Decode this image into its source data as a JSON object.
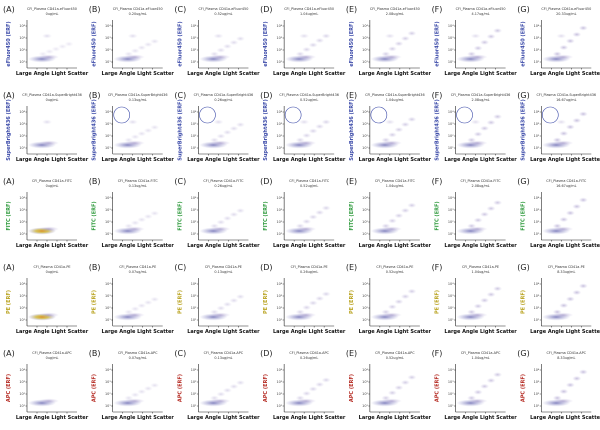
{
  "chart_data": {
    "type": "scatter",
    "xlabel": "Large Angle Light Scatter",
    "ytick_labels": [
      "10¹",
      "10²",
      "10³",
      "10⁴"
    ],
    "rows": [
      {
        "ylabel": "eFluor450 (ERF)",
        "color": "#3a49a8",
        "ring": false,
        "panels": [
          {
            "letter": "(A)",
            "title": "CFl_Plasma CD41a-eFluor450",
            "conc": "0ug/mL"
          },
          {
            "letter": "(B)",
            "title": "CFl_Plasma CD41a-eFluor450",
            "conc": "0.20ug/mL"
          },
          {
            "letter": "(C)",
            "title": "CFl_Plasma CD41a-eFluor450",
            "conc": "0.52ug/mL"
          },
          {
            "letter": "(D)",
            "title": "CFl_Plasma CD41a-eFluor450",
            "conc": "1.04ug/mL"
          },
          {
            "letter": "(E)",
            "title": "CFl_Plasma CD41a-eFluor450",
            "conc": "2.08ug/mL"
          },
          {
            "letter": "(F)",
            "title": "CFl_Plasma CD41a-eFluor450",
            "conc": "4.17ug/mL"
          },
          {
            "letter": "(G)",
            "title": "CFl_Plasma CD41a-eFluor450",
            "conc": "20.33ug/mL"
          }
        ]
      },
      {
        "ylabel": "SuperBright436 (ERF)",
        "color": "#3a49a8",
        "ring": true,
        "panels": [
          {
            "letter": "(A)",
            "title": "CFl_Plasma CD41a-SuperBright436",
            "conc": "0ug/mL"
          },
          {
            "letter": "(B)",
            "title": "CFl_Plasma CD41a-SuperBright436",
            "conc": "0.13ug/mL"
          },
          {
            "letter": "(C)",
            "title": "CFl_Plasma CD41a-SuperBright436",
            "conc": "0.26ug/mL"
          },
          {
            "letter": "(D)",
            "title": "CFl_Plasma CD41a-SuperBright436",
            "conc": "0.52ug/mL"
          },
          {
            "letter": "(E)",
            "title": "CFl_Plasma CD41a-SuperBright436",
            "conc": "1.04ug/mL"
          },
          {
            "letter": "(F)",
            "title": "CFl_Plasma CD41a-SuperBright436",
            "conc": "2.08ug/mL"
          },
          {
            "letter": "(G)",
            "title": "CFl_Plasma CD41a-SuperBright436",
            "conc": "16.67ug/mL"
          }
        ]
      },
      {
        "ylabel": "FITC (ERF)",
        "color": "#2e9a3c",
        "ring": false,
        "panels": [
          {
            "letter": "(A)",
            "title": "CFl_Plasma CD41a-FITC",
            "conc": "0ug/mL"
          },
          {
            "letter": "(B)",
            "title": "CFl_Plasma CD41a-FITC",
            "conc": "0.13ug/mL"
          },
          {
            "letter": "(C)",
            "title": "CFl_Plasma CD41a-FITC",
            "conc": "0.26ug/mL"
          },
          {
            "letter": "(D)",
            "title": "CFl_Plasma CD41a-FITC",
            "conc": "0.52ug/mL"
          },
          {
            "letter": "(E)",
            "title": "CFl_Plasma CD41a-FITC",
            "conc": "1.04ug/mL"
          },
          {
            "letter": "(F)",
            "title": "CFl_Plasma CD41a-FITC",
            "conc": "2.08ug/mL"
          },
          {
            "letter": "(G)",
            "title": "CFl_Plasma CD41a-FITC",
            "conc": "16.67ug/mL"
          }
        ]
      },
      {
        "ylabel": "PE (ERF)",
        "color": "#b8a21e",
        "ring": false,
        "panels": [
          {
            "letter": "(A)",
            "title": "CFl_Plasma CD41a-PE",
            "conc": "0ug/mL"
          },
          {
            "letter": "(B)",
            "title": "CFl_Plasma CD41a-PE",
            "conc": "0.07ug/mL"
          },
          {
            "letter": "(C)",
            "title": "CFl_Plasma CD41a-PE",
            "conc": "0.13ug/mL"
          },
          {
            "letter": "(D)",
            "title": "CFl_Plasma CD41a-PE",
            "conc": "0.26ug/mL"
          },
          {
            "letter": "(E)",
            "title": "CFl_Plasma CD41a-PE",
            "conc": "0.52ug/mL"
          },
          {
            "letter": "(F)",
            "title": "CFl_Plasma CD41a-PE",
            "conc": "1.04ug/mL"
          },
          {
            "letter": "(G)",
            "title": "CFl_Plasma CD41a-PE",
            "conc": "8.33ug/mL"
          }
        ]
      },
      {
        "ylabel": "APC (ERF)",
        "color": "#b52a22",
        "ring": false,
        "panels": [
          {
            "letter": "(A)",
            "title": "CFl_Plasma CD41a-APC",
            "conc": "0ug/mL"
          },
          {
            "letter": "(B)",
            "title": "CFl_Plasma CD41a-APC",
            "conc": "0.07ug/mL"
          },
          {
            "letter": "(C)",
            "title": "CFl_Plasma CD41a-APC",
            "conc": "0.13ug/mL"
          },
          {
            "letter": "(D)",
            "title": "CFl_Plasma CD41a-APC",
            "conc": "0.26ug/mL"
          },
          {
            "letter": "(E)",
            "title": "CFl_Plasma CD41a-APC",
            "conc": "0.52ug/mL"
          },
          {
            "letter": "(F)",
            "title": "CFl_Plasma CD41a-APC",
            "conc": "1.04ug/mL"
          },
          {
            "letter": "(G)",
            "title": "CFl_Plasma CD41a-APC",
            "conc": "8.33ug/mL"
          }
        ]
      }
    ]
  }
}
